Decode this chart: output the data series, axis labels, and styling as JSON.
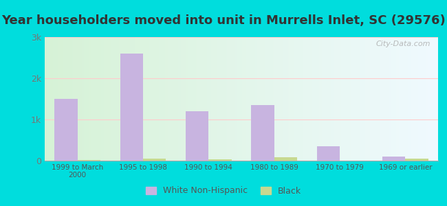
{
  "title": "Year householders moved into unit in Murrells Inlet, SC (29576)",
  "categories": [
    "1999 to March\n2000",
    "1995 to 1998",
    "1990 to 1994",
    "1980 to 1989",
    "1970 to 1979",
    "1969 or earlier"
  ],
  "white_values": [
    1500,
    2600,
    1200,
    1350,
    350,
    100
  ],
  "black_values": [
    20,
    50,
    30,
    80,
    0,
    50
  ],
  "white_color": "#c8b4e0",
  "black_color": "#c8d890",
  "bar_width": 0.35,
  "ylim": [
    0,
    3000
  ],
  "yticks": [
    0,
    1000,
    2000,
    3000
  ],
  "ytick_labels": [
    "0",
    "1k",
    "2k",
    "3k"
  ],
  "title_fontsize": 13,
  "background_outer": "#00dddd",
  "legend_white": "White Non-Hispanic",
  "legend_black": "Black",
  "watermark": "City-Data.com"
}
